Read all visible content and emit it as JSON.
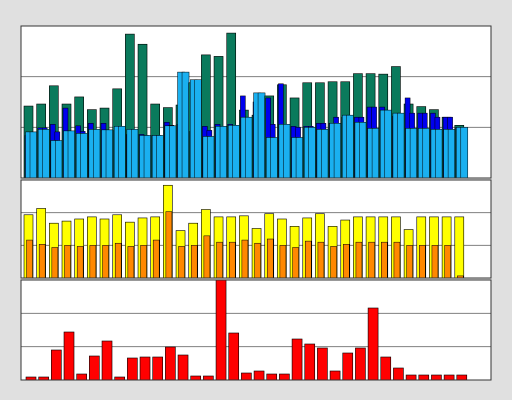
{
  "colors": {
    "background": "#e0e0e0",
    "plot_background": "#ffffff",
    "grid": "#808080",
    "frame": "#333333",
    "total": "#0a7a5c",
    "highlight": "#0000ee",
    "value": "#1ab0f0",
    "series_b": "#ffff00",
    "series_b_inner": "#ff8800",
    "series_c": "#ff0000"
  },
  "chart_data": [
    {
      "type": "bar",
      "panel": "top",
      "grid": true,
      "ylim": [
        0,
        300
      ],
      "x": [
        1,
        2,
        3,
        4,
        5,
        6,
        7,
        8,
        9,
        10,
        11,
        12,
        13,
        14,
        15,
        16,
        17,
        18,
        19,
        20,
        21,
        22,
        23,
        24,
        25,
        26,
        27,
        28,
        29,
        30,
        31,
        32,
        33,
        34,
        35,
        36,
        37,
        38,
        39,
        40,
        41,
        42,
        43,
        44,
        45,
        46,
        47,
        48,
        49,
        50,
        51,
        52,
        53,
        54,
        55,
        56,
        57,
        58,
        59,
        60,
        61,
        62,
        63,
        64,
        65,
        66,
        67,
        68,
        69,
        70
      ],
      "series": [
        {
          "key": "total",
          "values": [
            140,
            142,
            146,
            146,
            182,
            139,
            146,
            142,
            151,
            160,
            135,
            135,
            124,
            138,
            176,
            176,
            284,
            148,
            264,
            148,
            146,
            146,
            139,
            139,
            144,
            142,
            188,
            132,
            243,
            230,
            240,
            178,
            286,
            120,
            118,
            134,
            124,
            124,
            162,
            134,
            184,
            166,
            158,
            158,
            188,
            122,
            188,
            140,
            190,
            162,
            190,
            148,
            206,
            148,
            206,
            205,
            205,
            147,
            220,
            155,
            146,
            146,
            141,
            141,
            135,
            135,
            120,
            120,
            104,
            100
          ]
        },
        {
          "key": "highlight",
          "values": [
            84,
            84,
            99,
            99,
            106,
            91,
            138,
            90,
            103,
            92,
            108,
            90,
            108,
            94,
            94,
            90,
            86,
            90,
            86,
            84,
            84,
            84,
            110,
            104,
            106,
            101,
            92,
            92,
            102,
            94,
            106,
            101,
            106,
            104,
            162,
            110,
            150,
            130,
            158,
            106,
            186,
            102,
            102,
            100,
            102,
            102,
            108,
            108,
            108,
            120,
            120,
            120,
            120,
            120,
            140,
            140,
            140,
            122,
            122,
            122,
            158,
            128,
            128,
            128,
            128,
            120,
            120,
            120,
            100,
            100
          ]
        },
        {
          "key": "value",
          "values": [
            91,
            91,
            96,
            96,
            74,
            74,
            93,
            93,
            88,
            88,
            96,
            96,
            95,
            95,
            102,
            102,
            96,
            96,
            84,
            84,
            84,
            84,
            103,
            103,
            209,
            209,
            194,
            194,
            82,
            82,
            102,
            102,
            104,
            104,
            120,
            120,
            168,
            168,
            80,
            80,
            106,
            106,
            80,
            80,
            100,
            100,
            96,
            96,
            108,
            108,
            124,
            124,
            110,
            110,
            98,
            98,
            134,
            134,
            128,
            128,
            98,
            98,
            98,
            98,
            96,
            96,
            96,
            96,
            100,
            100
          ]
        }
      ]
    },
    {
      "type": "bar",
      "panel": "middle",
      "grid": true,
      "ylim": [
        0,
        93
      ],
      "x": [
        1,
        2,
        3,
        4,
        5,
        6,
        7,
        8,
        9,
        10,
        11,
        12,
        13,
        14,
        15,
        16,
        17,
        18,
        19,
        20,
        21,
        22,
        23,
        24,
        25,
        26,
        27,
        28,
        29,
        30,
        31,
        32,
        33,
        34,
        35,
        36,
        37,
        38,
        39,
        40,
        41,
        42,
        43,
        44,
        45,
        46,
        47,
        48,
        49,
        50,
        51,
        52,
        53,
        54,
        55,
        56,
        57,
        58,
        59,
        60,
        61,
        62,
        63,
        64,
        65,
        66,
        67,
        68,
        69,
        70
      ],
      "series": [
        {
          "key": "series_b",
          "values": [
            60,
            60,
            66,
            66,
            52,
            52,
            54,
            54,
            56,
            56,
            58,
            58,
            56,
            56,
            60,
            60,
            53,
            53,
            57,
            57,
            58,
            58,
            88,
            88,
            45,
            45,
            52,
            52,
            65,
            65,
            58,
            58,
            58,
            58,
            59,
            59,
            47,
            47,
            61,
            61,
            56,
            56,
            49,
            49,
            57,
            57,
            61,
            61,
            49,
            49,
            55,
            55,
            58,
            58,
            58,
            58,
            58,
            58,
            58,
            58,
            46,
            46,
            58,
            58,
            58,
            58,
            58,
            58,
            58,
            58
          ]
        },
        {
          "key": "series_b_inner",
          "values": [
            36,
            36,
            32,
            32,
            29,
            29,
            31,
            31,
            30,
            30,
            31,
            31,
            31,
            31,
            33,
            33,
            30,
            30,
            31,
            31,
            36,
            36,
            63,
            63,
            30,
            30,
            31,
            31,
            40,
            40,
            34,
            34,
            34,
            34,
            36,
            36,
            33,
            33,
            37,
            37,
            31,
            31,
            29,
            29,
            35,
            35,
            34,
            34,
            30,
            30,
            32,
            32,
            34,
            34,
            34,
            34,
            34,
            34,
            34,
            34,
            31,
            31,
            31,
            31,
            31,
            31,
            31,
            31,
            2,
            2
          ]
        }
      ]
    },
    {
      "type": "bar",
      "panel": "bottom",
      "grid": true,
      "ylim": [
        0,
        100
      ],
      "x": [
        1,
        2,
        3,
        4,
        5,
        6,
        7,
        8,
        9,
        10,
        11,
        12,
        13,
        14,
        15,
        16,
        17,
        18,
        19,
        20,
        21,
        22,
        23,
        24,
        25,
        26,
        27,
        28,
        29,
        30,
        31,
        32,
        33,
        34,
        35,
        36,
        37,
        38,
        39,
        40,
        41,
        42,
        43,
        44,
        45,
        46,
        47,
        48,
        49,
        50,
        51,
        52,
        53,
        54,
        55,
        56,
        57,
        58,
        59,
        60,
        61,
        62,
        63,
        64,
        65,
        66,
        67,
        68,
        69,
        70
      ],
      "series": [
        {
          "key": "series_c",
          "values": [
            3,
            3,
            3,
            3,
            30,
            30,
            48,
            48,
            6,
            6,
            24,
            24,
            39,
            39,
            3,
            3,
            22,
            22,
            23,
            23,
            23,
            23,
            33,
            33,
            25,
            25,
            4,
            4,
            4,
            4,
            100,
            100,
            47,
            47,
            7,
            7,
            9,
            9,
            6,
            6,
            6,
            6,
            41,
            41,
            36,
            36,
            32,
            32,
            9,
            9,
            27,
            27,
            32,
            32,
            72,
            72,
            23,
            23,
            12,
            12,
            5,
            5,
            5,
            5,
            5,
            5,
            5,
            5,
            5,
            5
          ]
        }
      ]
    }
  ]
}
